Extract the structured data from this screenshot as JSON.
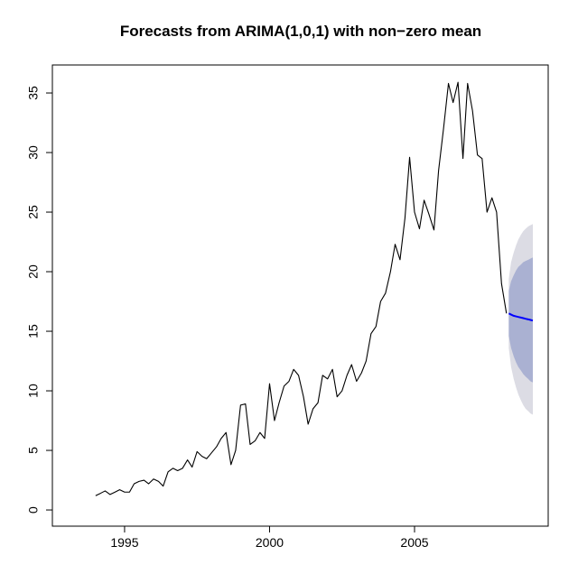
{
  "chart_data": {
    "type": "line",
    "title": "Forecasts from ARIMA(1,0,1) with non−zero mean",
    "x": [
      1994,
      1994.17,
      1994.33,
      1994.5,
      1994.67,
      1994.83,
      1995,
      1995.17,
      1995.33,
      1995.5,
      1995.67,
      1995.83,
      1996,
      1996.17,
      1996.33,
      1996.5,
      1996.67,
      1996.83,
      1997,
      1997.17,
      1997.33,
      1997.5,
      1997.67,
      1997.83,
      1998,
      1998.17,
      1998.33,
      1998.5,
      1998.67,
      1998.83,
      1999,
      1999.17,
      1999.33,
      1999.5,
      1999.67,
      1999.83,
      2000,
      2000.17,
      2000.33,
      2000.5,
      2000.67,
      2000.83,
      2001,
      2001.17,
      2001.33,
      2001.5,
      2001.67,
      2001.83,
      2002,
      2002.17,
      2002.33,
      2002.5,
      2002.67,
      2002.83,
      2003,
      2003.17,
      2003.33,
      2003.5,
      2003.67,
      2003.83,
      2004,
      2004.17,
      2004.33,
      2004.5,
      2004.67,
      2004.83,
      2005,
      2005.17,
      2005.33,
      2005.5,
      2005.67,
      2005.83,
      2006,
      2006.17,
      2006.33,
      2006.5,
      2006.67,
      2006.83,
      2007,
      2007.17,
      2007.33,
      2007.5,
      2007.67,
      2007.83,
      2008,
      2008.17
    ],
    "values": [
      1.2,
      1.4,
      1.6,
      1.3,
      1.5,
      1.7,
      1.5,
      1.5,
      2.2,
      2.4,
      2.5,
      2.2,
      2.6,
      2.4,
      2.0,
      3.2,
      3.5,
      3.3,
      3.5,
      4.2,
      3.6,
      4.9,
      4.5,
      4.3,
      4.8,
      5.3,
      6.0,
      6.5,
      3.8,
      5.0,
      8.8,
      8.9,
      5.5,
      5.8,
      6.5,
      6.0,
      10.6,
      7.5,
      9.0,
      10.4,
      10.8,
      11.8,
      11.3,
      9.5,
      7.2,
      8.5,
      9.0,
      11.3,
      11.0,
      11.8,
      9.5,
      10.0,
      11.3,
      12.2,
      10.8,
      11.5,
      12.5,
      14.8,
      15.4,
      17.5,
      18.2,
      20.0,
      22.3,
      21.0,
      24.5,
      29.6,
      25.0,
      23.6,
      26.0,
      24.8,
      23.5,
      28.5,
      32.0,
      35.8,
      34.2,
      35.9,
      29.5,
      35.8,
      33.5,
      29.8,
      29.5,
      25.0,
      26.2,
      25.0,
      19.0,
      16.5
    ],
    "color": "#000000",
    "forecast": {
      "x": [
        2008.25,
        2008.33,
        2008.42,
        2008.5,
        2008.58,
        2008.67,
        2008.75,
        2008.83,
        2008.92,
        2009.0,
        2009.08
      ],
      "mean": [
        16.5,
        16.4,
        16.3,
        16.25,
        16.2,
        16.15,
        16.1,
        16.05,
        16.0,
        15.95,
        15.9
      ],
      "lo80": [
        14.6,
        13.6,
        12.9,
        12.4,
        12.0,
        11.7,
        11.4,
        11.2,
        11.0,
        10.8,
        10.7
      ],
      "hi80": [
        18.4,
        19.2,
        19.7,
        20.1,
        20.4,
        20.6,
        20.8,
        20.9,
        21.0,
        21.1,
        21.2
      ],
      "lo95": [
        13.6,
        12.0,
        11.0,
        10.3,
        9.7,
        9.2,
        8.8,
        8.5,
        8.3,
        8.1,
        8.0
      ],
      "hi95": [
        19.4,
        20.8,
        21.6,
        22.2,
        22.7,
        23.1,
        23.4,
        23.6,
        23.8,
        23.9,
        24.0
      ],
      "mean_color": "#0000ff",
      "band80_color": "#aab1d2",
      "band95_color": "#dcdce4"
    },
    "xlim": [
      1992.51,
      2009.61
    ],
    "ylim": [
      -1.36,
      37.35
    ],
    "xticks": [
      1995,
      2000,
      2005
    ],
    "yticks": [
      0,
      5,
      10,
      15,
      20,
      25,
      30,
      35
    ],
    "grid": false
  }
}
